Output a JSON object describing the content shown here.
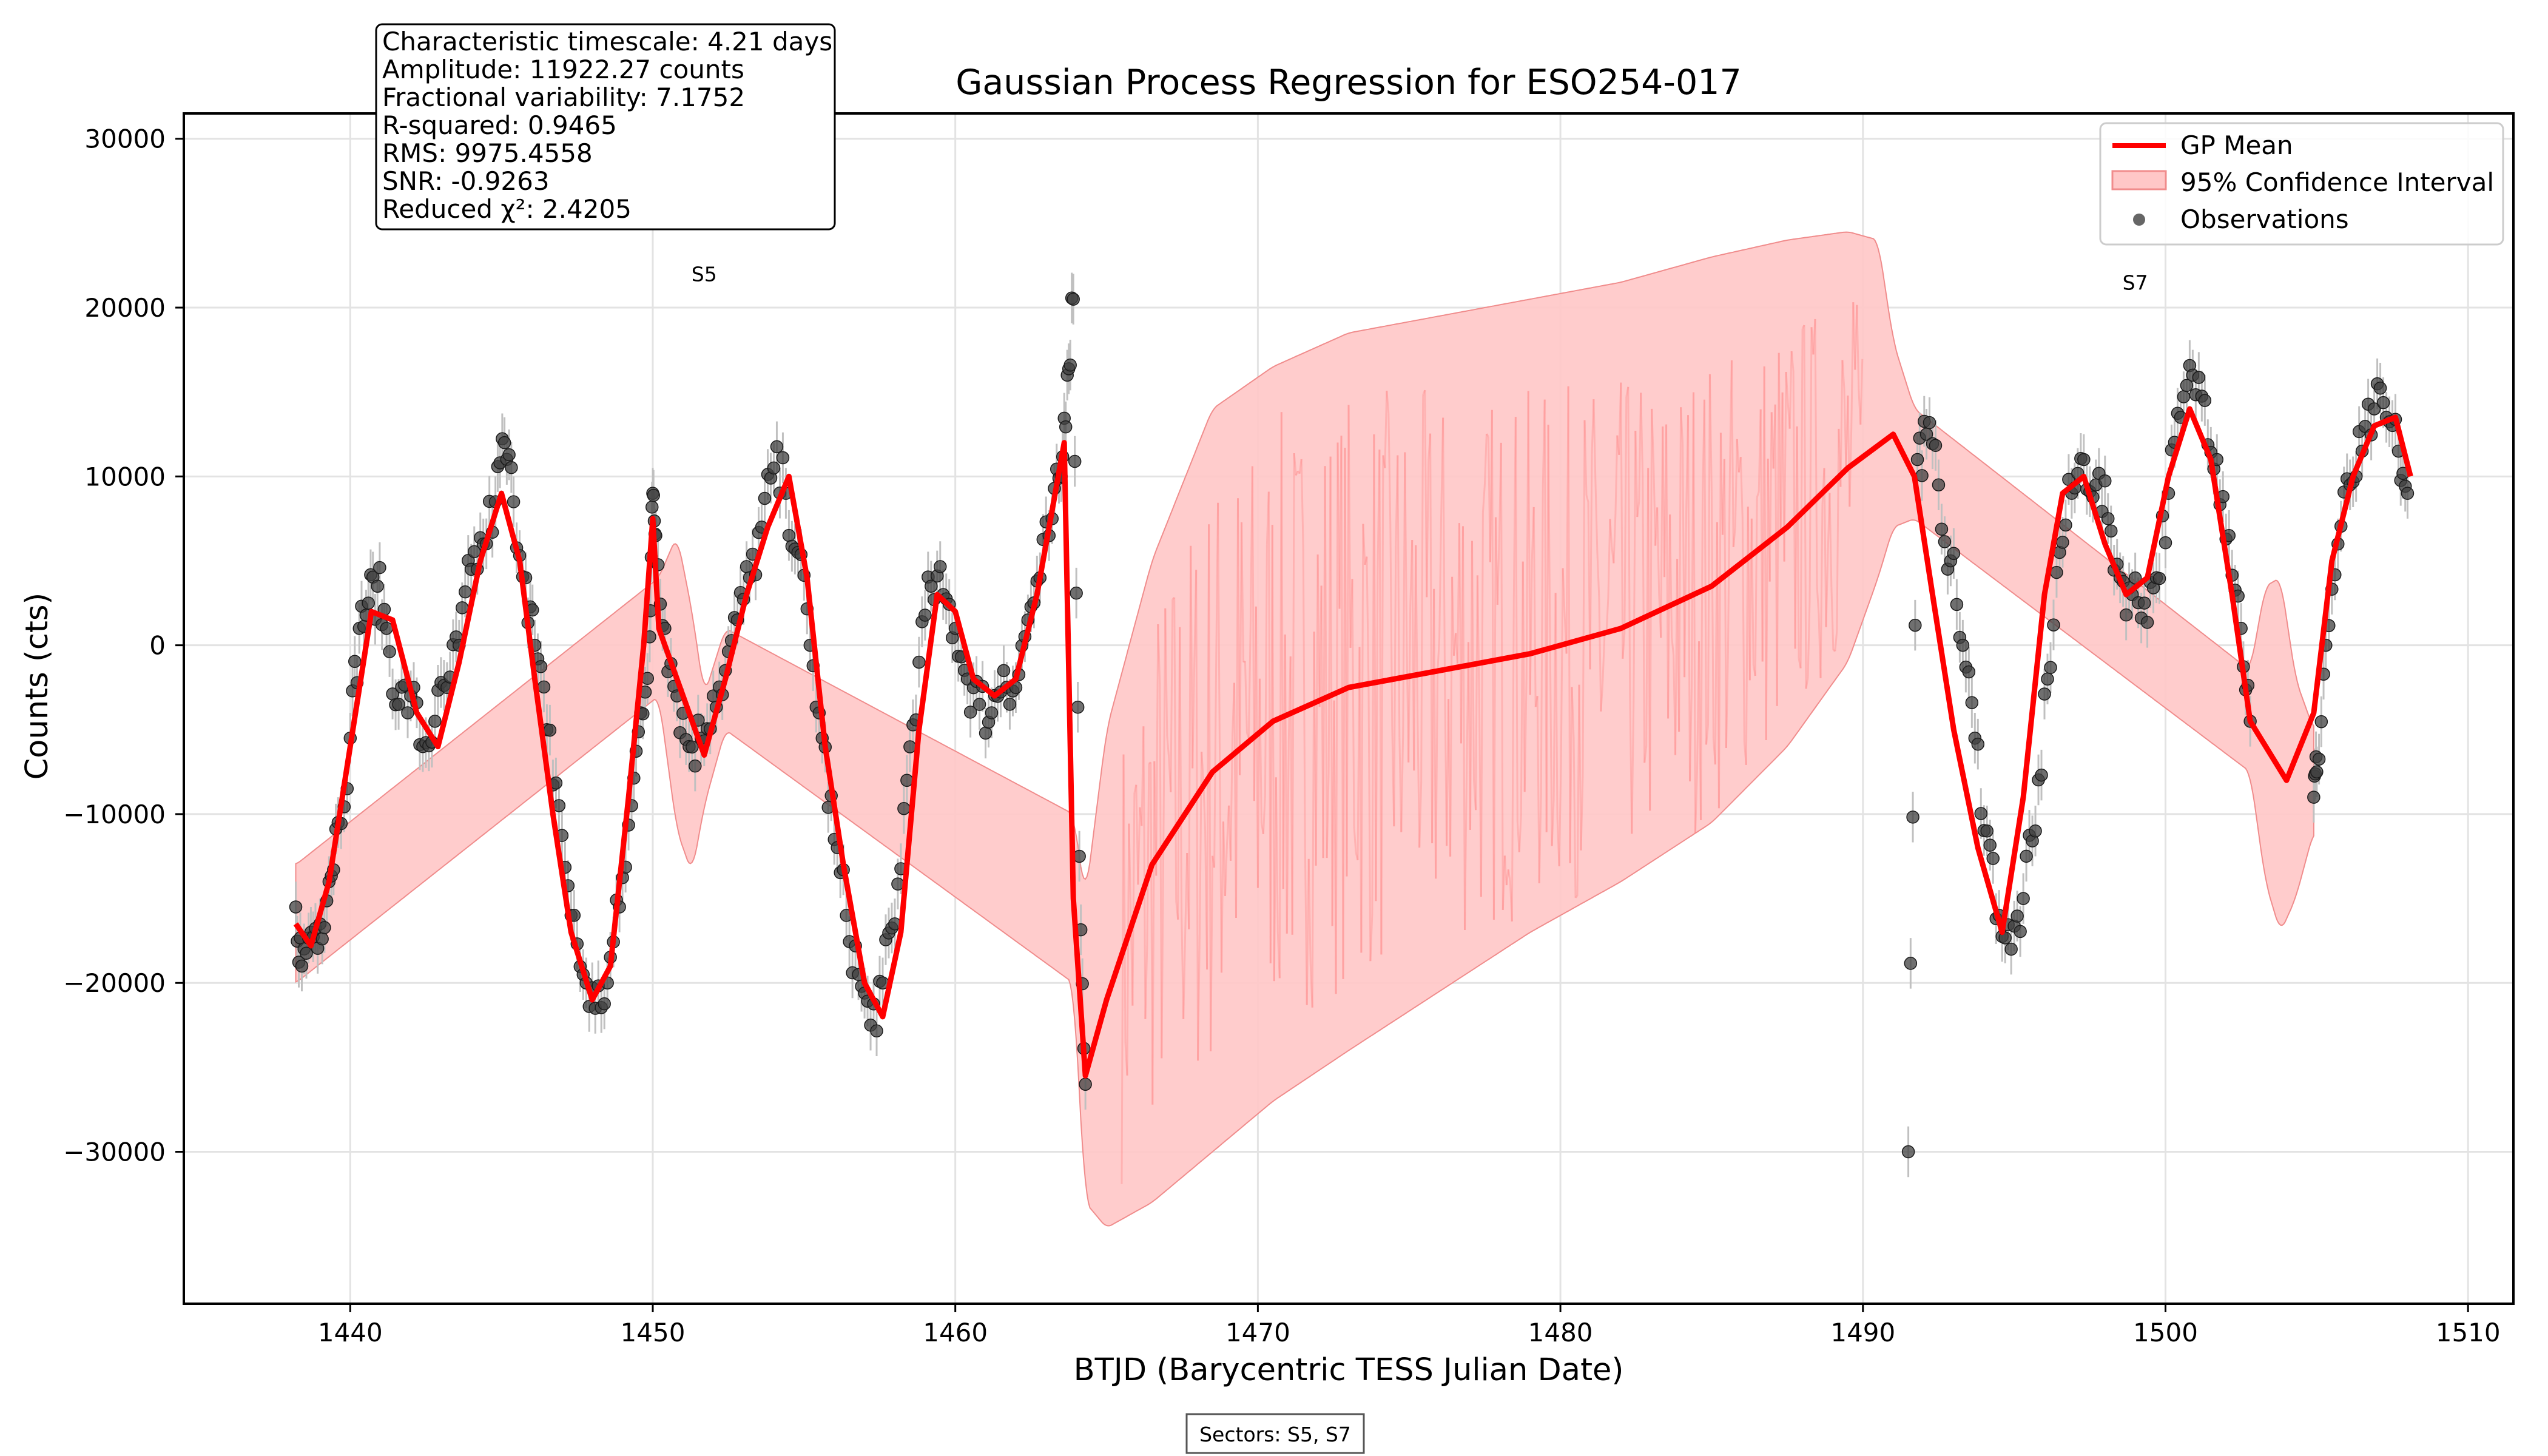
{
  "chart_data": {
    "type": "line",
    "title": "Gaussian Process Regression for ESO254-017",
    "xlabel": "BTJD (Barycentric TESS Julian Date)",
    "ylabel": "Counts (cts)",
    "xlim": [
      1434.5,
      1511.5
    ],
    "ylim": [
      -39000,
      31500
    ],
    "x_ticks": [
      1440,
      1450,
      1460,
      1470,
      1480,
      1490,
      1500,
      1510
    ],
    "y_ticks": [
      -30000,
      -20000,
      -10000,
      0,
      10000,
      20000,
      30000
    ],
    "x_tick_labels": [
      "1440",
      "1450",
      "1460",
      "1470",
      "1480",
      "1490",
      "1500",
      "1510"
    ],
    "y_tick_labels": [
      "−30000",
      "−20000",
      "−10000",
      "0",
      "10000",
      "20000",
      "30000"
    ],
    "grid": true,
    "legend_position": "top-right",
    "stats_lines": [
      "Characteristic timescale: 4.21 days",
      "Amplitude: 11922.27 counts",
      "Fractional variability: 7.1752",
      "R-squared: 0.9465",
      "RMS: 9975.4558",
      "SNR: -0.9263",
      "Reduced χ²: 2.4205"
    ],
    "sector_labels": [
      {
        "text": "S5",
        "x": 1451.7,
        "y": 22000
      },
      {
        "text": "S7",
        "x": 1499.0,
        "y": 21500
      }
    ],
    "sectors_note": "Sectors: S5, S7",
    "colors": {
      "mean": "#ff0000",
      "band": "#ffc7c7",
      "band_edge": "#f08c8c",
      "points": "#404040",
      "errorbars": "#c0c0c0"
    },
    "series": [
      {
        "name": "GP Mean",
        "x": [
          1438.2,
          1438.7,
          1439.3,
          1440.0,
          1440.7,
          1441.4,
          1442.2,
          1442.9,
          1443.6,
          1444.3,
          1445.0,
          1445.6,
          1446.1,
          1446.7,
          1447.3,
          1448.0,
          1448.6,
          1449.2,
          1449.7,
          1450.0,
          1450.2,
          1451.7,
          1452.4,
          1453.1,
          1453.8,
          1454.5,
          1455.1,
          1455.7,
          1456.3,
          1457.0,
          1457.6,
          1458.2,
          1458.8,
          1459.4,
          1460.0,
          1460.6,
          1461.3,
          1462.0,
          1462.7,
          1463.3,
          1463.6,
          1463.9,
          1464.3,
          1465.0,
          1466.5,
          1468.5,
          1470.5,
          1473.0,
          1476.0,
          1479.0,
          1482.0,
          1485.0,
          1487.5,
          1489.5,
          1491.0,
          1491.7,
          1492.3,
          1493.0,
          1493.8,
          1494.6,
          1495.3,
          1496.0,
          1496.6,
          1497.3,
          1498.0,
          1498.7,
          1499.4,
          1500.1,
          1500.8,
          1501.5,
          1502.2,
          1502.8,
          1504.0,
          1504.9,
          1505.5,
          1506.2,
          1506.9,
          1507.6,
          1508.1
        ],
        "values": [
          -16500,
          -17800,
          -14000,
          -6000,
          2000,
          1500,
          -4000,
          -6000,
          -1000,
          5000,
          9000,
          5000,
          -2000,
          -10000,
          -17000,
          -21000,
          -19000,
          -9000,
          0,
          7500,
          1000,
          -6500,
          -2000,
          3000,
          7000,
          10000,
          4000,
          -6000,
          -13000,
          -20000,
          -22000,
          -17000,
          -5000,
          3000,
          2000,
          -2000,
          -3000,
          -2000,
          3000,
          9000,
          12000,
          -15000,
          -25500,
          -21000,
          -13000,
          -7500,
          -4500,
          -2500,
          -1500,
          -500,
          1000,
          3500,
          7000,
          10500,
          12500,
          10000,
          3000,
          -5000,
          -12000,
          -17000,
          -9000,
          3000,
          9000,
          10000,
          6000,
          3000,
          4000,
          10000,
          14000,
          11000,
          3000,
          -4500,
          -8000,
          -4000,
          5000,
          10000,
          13000,
          13500,
          10000
        ]
      },
      {
        "name": "95% Confidence Interval",
        "x": [
          1438.2,
          1450.2,
          1450.8,
          1451.3,
          1451.7,
          1452.4,
          1463.9,
          1464.3,
          1465.0,
          1466.5,
          1468.5,
          1470.5,
          1473.0,
          1476.0,
          1479.0,
          1482.0,
          1485.0,
          1487.5,
          1489.5,
          1490.5,
          1491.0,
          1491.7,
          1502.8,
          1503.3,
          1503.8,
          1504.3,
          1504.9
        ],
        "upper": [
          -13000,
          4000,
          6500,
          2000,
          -3000,
          1000,
          -10000,
          -15000,
          -5000,
          5000,
          14000,
          16500,
          18500,
          19500,
          20500,
          21500,
          23000,
          24000,
          24500,
          24000,
          18000,
          14000,
          -1500,
          3500,
          4000,
          -2000,
          -5000
        ],
        "lower": [
          -20000,
          -3000,
          -11000,
          -13500,
          -9500,
          -5000,
          -20000,
          -33000,
          -34500,
          -33000,
          -30000,
          -27000,
          -24000,
          -20500,
          -17000,
          -14000,
          -10500,
          -6000,
          -1000,
          4000,
          7000,
          7500,
          -7500,
          -14000,
          -17000,
          -15000,
          -11000
        ]
      },
      {
        "name": "Observations",
        "x": [
          1438.2,
          1438.4,
          1438.7,
          1439.0,
          1439.3,
          1439.6,
          1440.0,
          1440.3,
          1440.6,
          1440.9,
          1441.2,
          1441.6,
          1442.0,
          1442.4,
          1442.8,
          1443.2,
          1443.6,
          1444.0,
          1444.4,
          1444.8,
          1445.1,
          1445.4,
          1445.8,
          1446.1,
          1446.5,
          1446.9,
          1447.3,
          1447.7,
          1448.1,
          1448.5,
          1448.9,
          1449.3,
          1449.6,
          1449.9,
          1450.0,
          1450.1,
          1450.4,
          1450.8,
          1451.2,
          1451.6,
          1452.0,
          1452.4,
          1452.8,
          1453.2,
          1453.6,
          1454.0,
          1454.4,
          1454.8,
          1455.2,
          1455.6,
          1456.0,
          1456.4,
          1456.8,
          1457.2,
          1457.6,
          1458.0,
          1458.4,
          1458.8,
          1459.2,
          1459.6,
          1460.0,
          1460.4,
          1460.8,
          1461.2,
          1461.6,
          1462.0,
          1462.4,
          1462.8,
          1463.2,
          1463.5,
          1463.7,
          1463.9,
          1464.1,
          1464.3,
          1491.5,
          1491.8,
          1492.1,
          1492.5,
          1492.9,
          1493.3,
          1493.7,
          1494.1,
          1494.5,
          1494.9,
          1495.3,
          1495.7,
          1496.1,
          1496.5,
          1496.9,
          1497.3,
          1497.7,
          1498.1,
          1498.5,
          1498.9,
          1499.3,
          1499.7,
          1500.1,
          1500.5,
          1500.9,
          1501.3,
          1501.7,
          1502.1,
          1502.5,
          1502.8,
          1504.9,
          1505.0,
          1505.3,
          1505.7,
          1506.1,
          1506.5,
          1506.9,
          1507.3,
          1507.7,
          1508.0
        ],
        "values": [
          -15500,
          -19000,
          -17000,
          -16500,
          -14000,
          -10500,
          -5500,
          1000,
          2500,
          3500,
          1000,
          -3500,
          -3000,
          -6000,
          -4500,
          -2500,
          0,
          4500,
          6000,
          8500,
          12000,
          8500,
          4000,
          0,
          -5000,
          -9500,
          -16000,
          -19500,
          -21500,
          -20000,
          -15500,
          -9500,
          -4000,
          500,
          9000,
          6500,
          1000,
          -3000,
          -6000,
          -5500,
          -3000,
          -1500,
          1500,
          4000,
          7000,
          10500,
          9000,
          5500,
          0,
          -5500,
          -11500,
          -16000,
          -19500,
          -22500,
          -20000,
          -16500,
          -8000,
          -1000,
          3500,
          3000,
          1000,
          -2000,
          -3500,
          -4000,
          -1500,
          -2500,
          1500,
          4000,
          7500,
          10000,
          16000,
          20500,
          -12500,
          -26000,
          -30000,
          11000,
          12500,
          9500,
          5000,
          0,
          -5500,
          -11000,
          -16000,
          -18000,
          -15000,
          -11000,
          -2000,
          5500,
          9000,
          11000,
          9500,
          7500,
          4000,
          3000,
          2500,
          4000,
          9000,
          13500,
          16000,
          14500,
          11000,
          6500,
          1000,
          -4500,
          -9000,
          -7500,
          0,
          6000,
          9500,
          11500,
          14000,
          13500,
          11500,
          9000
        ]
      }
    ]
  }
}
